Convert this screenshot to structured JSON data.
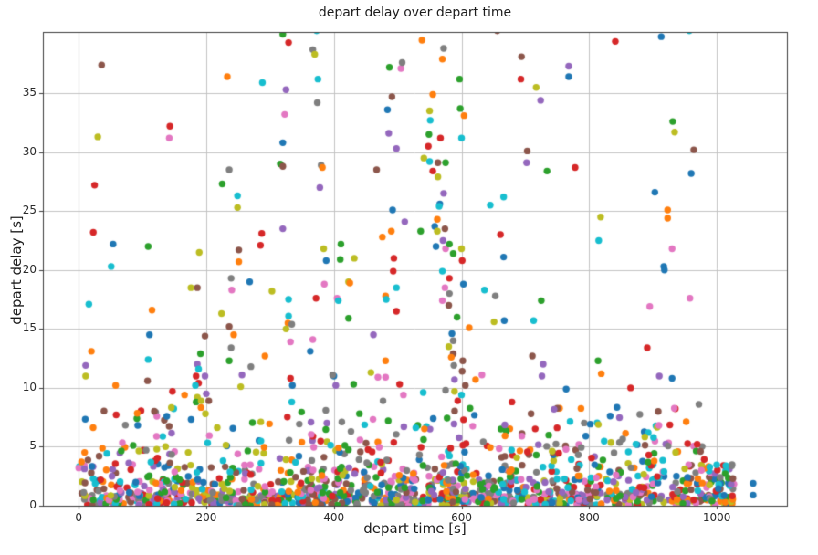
{
  "chart_data": {
    "type": "scatter",
    "title": "depart delay over depart time",
    "xlabel": "depart time [s]",
    "ylabel": "depart delay [s]",
    "xlim": [
      -56,
      1110
    ],
    "ylim": [
      0,
      40.2
    ],
    "xticks": [
      0,
      200,
      400,
      600,
      800,
      1000
    ],
    "yticks": [
      0,
      5,
      10,
      15,
      20,
      25,
      30,
      35
    ],
    "grid": true,
    "grid_color": "#c3c3c3",
    "spine_color": "#3d3d3d",
    "tick_color": "#3d3d3d",
    "background": "#ffffff",
    "marker_radius_px": 3.7,
    "legend": null,
    "palette": [
      "#1f77b4",
      "#ff7f0e",
      "#2ca02c",
      "#d62728",
      "#9467bd",
      "#8c564b",
      "#e377c2",
      "#7f7f7f",
      "#bcbd22",
      "#17becf"
    ],
    "points": [
      [
        36,
        37.4,
        5
      ],
      [
        233,
        36.4,
        1
      ],
      [
        288,
        35.9,
        9
      ],
      [
        325,
        35.3,
        4
      ],
      [
        320,
        40.0,
        2
      ],
      [
        329,
        39.3,
        3
      ],
      [
        323,
        33.2,
        6
      ],
      [
        143,
        32.2,
        3
      ],
      [
        142,
        31.2,
        6
      ],
      [
        30,
        31.3,
        8
      ],
      [
        320,
        30.8,
        0
      ],
      [
        236,
        28.5,
        7
      ],
      [
        316,
        29.0,
        2
      ],
      [
        320,
        28.8,
        5
      ],
      [
        25,
        27.2,
        3
      ],
      [
        225,
        27.3,
        2
      ],
      [
        249,
        26.3,
        9
      ],
      [
        249,
        25.3,
        8
      ],
      [
        23,
        23.2,
        3
      ],
      [
        320,
        23.5,
        4
      ],
      [
        54,
        22.2,
        0
      ],
      [
        287,
        23.1,
        3
      ],
      [
        285,
        22.1,
        3
      ],
      [
        109,
        22.0,
        2
      ],
      [
        251,
        21.7,
        5
      ],
      [
        189,
        21.5,
        8
      ],
      [
        251,
        20.7,
        1
      ],
      [
        51,
        20.3,
        9
      ],
      [
        373,
        40.3,
        9
      ],
      [
        367,
        38.7,
        7
      ],
      [
        370,
        38.3,
        8
      ],
      [
        538,
        39.5,
        1
      ],
      [
        572,
        38.8,
        7
      ],
      [
        570,
        37.9,
        1
      ],
      [
        656,
        40.3,
        5
      ],
      [
        694,
        38.1,
        5
      ],
      [
        487,
        37.2,
        2
      ],
      [
        505,
        37.1,
        6
      ],
      [
        507,
        37.6,
        7
      ],
      [
        597,
        36.2,
        2
      ],
      [
        693,
        36.2,
        3
      ],
      [
        375,
        36.2,
        9
      ],
      [
        717,
        35.5,
        8
      ],
      [
        491,
        34.7,
        5
      ],
      [
        555,
        34.9,
        1
      ],
      [
        374,
        34.2,
        7
      ],
      [
        484,
        33.6,
        0
      ],
      [
        550,
        33.5,
        8
      ],
      [
        598,
        33.7,
        2
      ],
      [
        604,
        33.1,
        1
      ],
      [
        551,
        32.7,
        9
      ],
      [
        486,
        31.6,
        4
      ],
      [
        549,
        31.5,
        2
      ],
      [
        567,
        31.2,
        3
      ],
      [
        600,
        31.2,
        9
      ],
      [
        498,
        30.3,
        4
      ],
      [
        548,
        30.5,
        3
      ],
      [
        703,
        30.1,
        5
      ],
      [
        541,
        29.5,
        8
      ],
      [
        380,
        28.9,
        7
      ],
      [
        382,
        28.7,
        1
      ],
      [
        550,
        29.2,
        9
      ],
      [
        563,
        29.1,
        5
      ],
      [
        575,
        29.1,
        2
      ],
      [
        555,
        28.4,
        3
      ],
      [
        467,
        28.5,
        5
      ],
      [
        702,
        29.1,
        4
      ],
      [
        563,
        27.9,
        8
      ],
      [
        378,
        27.0,
        4
      ],
      [
        666,
        26.2,
        9
      ],
      [
        645,
        25.5,
        9
      ],
      [
        572,
        26.5,
        4
      ],
      [
        566,
        25.6,
        0
      ],
      [
        565,
        25.4,
        9
      ],
      [
        492,
        25.1,
        0
      ],
      [
        511,
        24.1,
        4
      ],
      [
        562,
        24.3,
        1
      ],
      [
        558,
        23.7,
        0
      ],
      [
        562,
        23.3,
        8
      ],
      [
        574,
        23.5,
        5
      ],
      [
        536,
        23.3,
        2
      ],
      [
        490,
        23.3,
        1
      ],
      [
        476,
        22.8,
        1
      ],
      [
        661,
        23.0,
        3
      ],
      [
        571,
        22.5,
        4
      ],
      [
        560,
        22.0,
        0
      ],
      [
        575,
        21.8,
        6
      ],
      [
        581,
        22.2,
        2
      ],
      [
        600,
        21.8,
        8
      ],
      [
        384,
        21.8,
        8
      ],
      [
        411,
        22.2,
        2
      ],
      [
        587,
        21.4,
        2
      ],
      [
        494,
        21.0,
        3
      ],
      [
        388,
        20.8,
        0
      ],
      [
        410,
        20.9,
        2
      ],
      [
        432,
        21.0,
        8
      ],
      [
        666,
        21.1,
        0
      ],
      [
        601,
        20.8,
        3
      ],
      [
        841,
        39.4,
        3
      ],
      [
        913,
        39.8,
        0
      ],
      [
        957,
        40.3,
        9
      ],
      [
        768,
        37.3,
        4
      ],
      [
        768,
        36.4,
        0
      ],
      [
        724,
        34.4,
        4
      ],
      [
        931,
        32.6,
        2
      ],
      [
        934,
        31.7,
        8
      ],
      [
        964,
        30.2,
        5
      ],
      [
        734,
        28.4,
        2
      ],
      [
        778,
        28.7,
        3
      ],
      [
        960,
        28.2,
        0
      ],
      [
        903,
        26.6,
        0
      ],
      [
        923,
        25.1,
        1
      ],
      [
        923,
        24.4,
        1
      ],
      [
        818,
        24.5,
        8
      ],
      [
        815,
        22.5,
        9
      ],
      [
        930,
        21.8,
        6
      ],
      [
        917,
        20.3,
        0
      ],
      [
        16,
        17.1,
        9
      ],
      [
        115,
        16.6,
        1
      ],
      [
        176,
        18.5,
        8
      ],
      [
        186,
        18.5,
        5
      ],
      [
        111,
        14.5,
        0
      ],
      [
        20,
        13.1,
        1
      ],
      [
        109,
        12.4,
        9
      ],
      [
        11,
        11.9,
        4
      ],
      [
        11,
        11.0,
        8
      ],
      [
        108,
        10.6,
        5
      ],
      [
        58,
        10.2,
        1
      ],
      [
        198,
        14.4,
        5
      ],
      [
        191,
        12.9,
        2
      ],
      [
        186,
        12.0,
        4
      ],
      [
        188,
        11.6,
        9
      ],
      [
        184,
        11.0,
        3
      ],
      [
        198,
        11.0,
        4
      ],
      [
        188,
        10.4,
        3
      ],
      [
        183,
        10.2,
        9
      ],
      [
        200,
        9.5,
        4
      ],
      [
        147,
        9.7,
        3
      ],
      [
        166,
        9.4,
        1
      ],
      [
        186,
        9.2,
        8
      ],
      [
        184,
        8.8,
        2
      ],
      [
        192,
        8.9,
        8
      ],
      [
        204,
        8.9,
        5
      ],
      [
        224,
        16.3,
        8
      ],
      [
        236,
        15.2,
        5
      ],
      [
        239,
        19.3,
        7
      ],
      [
        268,
        19.0,
        0
      ],
      [
        240,
        18.3,
        6
      ],
      [
        243,
        14.5,
        1
      ],
      [
        239,
        13.4,
        7
      ],
      [
        236,
        12.3,
        2
      ],
      [
        256,
        11.1,
        4
      ],
      [
        254,
        10.1,
        8
      ],
      [
        270,
        11.8,
        7
      ],
      [
        303,
        18.2,
        8
      ],
      [
        329,
        17.5,
        9
      ],
      [
        329,
        16.1,
        9
      ],
      [
        328,
        15.5,
        1
      ],
      [
        334,
        15.4,
        7
      ],
      [
        325,
        15.0,
        8
      ],
      [
        332,
        13.9,
        6
      ],
      [
        332,
        10.8,
        3
      ],
      [
        335,
        10.2,
        0
      ],
      [
        334,
        8.8,
        9
      ],
      [
        292,
        12.7,
        1
      ],
      [
        367,
        14.1,
        6
      ],
      [
        363,
        13.1,
        0
      ],
      [
        372,
        17.6,
        3
      ],
      [
        385,
        18.8,
        6
      ],
      [
        405,
        17.6,
        6
      ],
      [
        407,
        17.4,
        9
      ],
      [
        423,
        19.0,
        8
      ],
      [
        425,
        18.9,
        1
      ],
      [
        423,
        15.9,
        2
      ],
      [
        400,
        11.0,
        0
      ],
      [
        398,
        11.1,
        7
      ],
      [
        403,
        10.2,
        4
      ],
      [
        431,
        10.3,
        2
      ],
      [
        481,
        17.8,
        1
      ],
      [
        482,
        17.5,
        9
      ],
      [
        498,
        16.5,
        3
      ],
      [
        462,
        14.5,
        4
      ],
      [
        481,
        12.3,
        1
      ],
      [
        458,
        11.3,
        8
      ],
      [
        469,
        10.9,
        6
      ],
      [
        481,
        10.9,
        6
      ],
      [
        503,
        10.3,
        3
      ],
      [
        509,
        9.4,
        6
      ],
      [
        477,
        8.9,
        7
      ],
      [
        493,
        19.9,
        3
      ],
      [
        498,
        18.5,
        9
      ],
      [
        570,
        19.9,
        9
      ],
      [
        581,
        19.3,
        3
      ],
      [
        603,
        18.8,
        0
      ],
      [
        574,
        18.5,
        6
      ],
      [
        581,
        18.0,
        7
      ],
      [
        570,
        17.4,
        6
      ],
      [
        580,
        17.0,
        5
      ],
      [
        636,
        18.3,
        9
      ],
      [
        653,
        17.8,
        7
      ],
      [
        725,
        17.4,
        2
      ],
      [
        593,
        16.0,
        2
      ],
      [
        651,
        15.6,
        8
      ],
      [
        667,
        15.7,
        0
      ],
      [
        713,
        15.7,
        9
      ],
      [
        612,
        15.1,
        1
      ],
      [
        895,
        16.9,
        6
      ],
      [
        958,
        17.6,
        6
      ],
      [
        918,
        20.0,
        0
      ],
      [
        585,
        14.6,
        0
      ],
      [
        587,
        14.0,
        7
      ],
      [
        580,
        13.5,
        8
      ],
      [
        587,
        12.9,
        5
      ],
      [
        584,
        12.6,
        1
      ],
      [
        602,
        12.3,
        5
      ],
      [
        588,
        11.9,
        7
      ],
      [
        601,
        11.4,
        5
      ],
      [
        632,
        11.1,
        6
      ],
      [
        622,
        10.7,
        1
      ],
      [
        589,
        10.7,
        4
      ],
      [
        606,
        10.2,
        5
      ],
      [
        711,
        12.7,
        5
      ],
      [
        728,
        12.0,
        4
      ],
      [
        726,
        11.0,
        4
      ],
      [
        814,
        12.3,
        2
      ],
      [
        819,
        11.2,
        1
      ],
      [
        891,
        13.4,
        3
      ],
      [
        910,
        11.0,
        4
      ],
      [
        930,
        10.8,
        0
      ],
      [
        865,
        10.0,
        3
      ],
      [
        764,
        9.9,
        0
      ],
      [
        575,
        9.8,
        7
      ],
      [
        540,
        9.6,
        9
      ],
      [
        589,
        9.7,
        8
      ],
      [
        600,
        9.4,
        9
      ],
      [
        594,
        8.9,
        3
      ],
      [
        679,
        8.8,
        3
      ],
      [
        972,
        8.6,
        7
      ],
      [
        967,
        2.8,
        7
      ],
      [
        976,
        3.0,
        6
      ],
      [
        902,
        3.8,
        1
      ],
      [
        1057,
        1.9,
        0
      ],
      [
        1057,
        0.9,
        0
      ]
    ],
    "density_regions": [
      {
        "x": [
          0,
          1028
        ],
        "y": [
          0.0,
          1.1
        ],
        "count": 620,
        "seed": 101
      },
      {
        "x": [
          0,
          1028
        ],
        "y": [
          1.1,
          2.3
        ],
        "count": 310,
        "seed": 202
      },
      {
        "x": [
          0,
          1028
        ],
        "y": [
          2.3,
          3.6
        ],
        "count": 180,
        "seed": 303
      },
      {
        "x": [
          0,
          990
        ],
        "y": [
          3.6,
          5.6
        ],
        "count": 140,
        "seed": 404
      },
      {
        "x": [
          0,
          960
        ],
        "y": [
          5.6,
          8.4
        ],
        "count": 100,
        "seed": 505
      }
    ]
  }
}
